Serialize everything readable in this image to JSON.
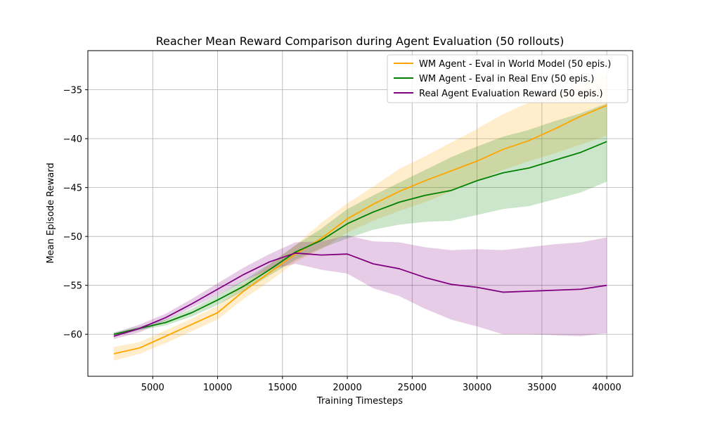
{
  "chart_data": {
    "type": "line",
    "title": "Reacher Mean Reward Comparison during Agent Evaluation (50 rollouts)",
    "xlabel": "Training Timesteps",
    "ylabel": "Mean Episode Reward",
    "xlim": [
      0,
      42000
    ],
    "ylim": [
      -64.3,
      -31.0
    ],
    "xticks": [
      5000,
      10000,
      15000,
      20000,
      25000,
      30000,
      35000,
      40000
    ],
    "yticks": [
      -60,
      -55,
      -50,
      -45,
      -40,
      -35
    ],
    "grid": true,
    "legend_position": "top-right",
    "x": [
      2000,
      4000,
      6000,
      8000,
      10000,
      12000,
      14000,
      16000,
      18000,
      20000,
      22000,
      24000,
      26000,
      28000,
      30000,
      32000,
      34000,
      36000,
      38000,
      40000
    ],
    "series": [
      {
        "name": "WM Agent - Eval in World Model (50 epis.)",
        "color": "#ffa500",
        "values": [
          -62.0,
          -61.4,
          -60.2,
          -59.0,
          -57.8,
          -55.6,
          -53.7,
          -51.8,
          -50.2,
          -48.2,
          -46.7,
          -45.4,
          -44.3,
          -43.3,
          -42.3,
          -41.1,
          -40.2,
          -39.0,
          -37.7,
          -36.6
        ],
        "lower": [
          -62.7,
          -62.0,
          -60.9,
          -59.7,
          -58.5,
          -56.4,
          -54.6,
          -52.6,
          -51.3,
          -49.6,
          -48.4,
          -47.4,
          -46.5,
          -45.4,
          -44.3,
          -43.2,
          -42.3,
          -41.5,
          -40.6,
          -39.7
        ],
        "upper": [
          -61.3,
          -60.8,
          -59.6,
          -58.4,
          -57.1,
          -54.9,
          -52.9,
          -50.9,
          -48.6,
          -46.6,
          -44.9,
          -43.1,
          -41.8,
          -40.4,
          -39.0,
          -37.5,
          -36.3,
          -35.4,
          -34.5,
          -33.5
        ]
      },
      {
        "name": "WM Agent - Eval in Real Env (50 epis.)",
        "color": "#008000",
        "values": [
          -60.0,
          -59.4,
          -58.8,
          -57.8,
          -56.5,
          -55.1,
          -53.4,
          -51.6,
          -50.4,
          -48.7,
          -47.5,
          -46.5,
          -45.8,
          -45.3,
          -44.3,
          -43.5,
          -43.0,
          -42.2,
          -41.4,
          -40.3
        ],
        "lower": [
          -60.2,
          -59.6,
          -59.1,
          -58.2,
          -57.0,
          -55.6,
          -54.0,
          -52.4,
          -51.2,
          -50.2,
          -49.3,
          -48.8,
          -48.5,
          -48.4,
          -47.8,
          -47.2,
          -46.9,
          -46.2,
          -45.5,
          -44.4
        ],
        "upper": [
          -59.8,
          -59.2,
          -58.5,
          -57.4,
          -56.0,
          -54.5,
          -52.8,
          -50.9,
          -49.2,
          -47.2,
          -45.8,
          -44.5,
          -43.2,
          -41.9,
          -40.8,
          -39.8,
          -39.1,
          -38.2,
          -37.4,
          -36.4
        ]
      },
      {
        "name": "Real Agent Evaluation Reward (50 epis.)",
        "color": "#800080",
        "values": [
          -60.2,
          -59.4,
          -58.3,
          -56.9,
          -55.4,
          -53.9,
          -52.6,
          -51.7,
          -51.9,
          -51.8,
          -52.8,
          -53.3,
          -54.2,
          -54.9,
          -55.2,
          -55.7,
          -55.6,
          -55.5,
          -55.4,
          -55.0
        ],
        "lower": [
          -60.5,
          -59.8,
          -58.6,
          -57.3,
          -56.0,
          -54.6,
          -53.4,
          -52.8,
          -53.4,
          -53.8,
          -55.3,
          -56.1,
          -57.4,
          -58.5,
          -59.2,
          -60.0,
          -60.0,
          -60.1,
          -60.2,
          -59.9
        ],
        "upper": [
          -59.9,
          -59.0,
          -57.9,
          -56.4,
          -54.8,
          -53.2,
          -51.8,
          -50.6,
          -50.5,
          -49.9,
          -50.5,
          -50.6,
          -51.1,
          -51.4,
          -51.3,
          -51.4,
          -51.1,
          -50.8,
          -50.6,
          -50.1
        ]
      }
    ]
  }
}
